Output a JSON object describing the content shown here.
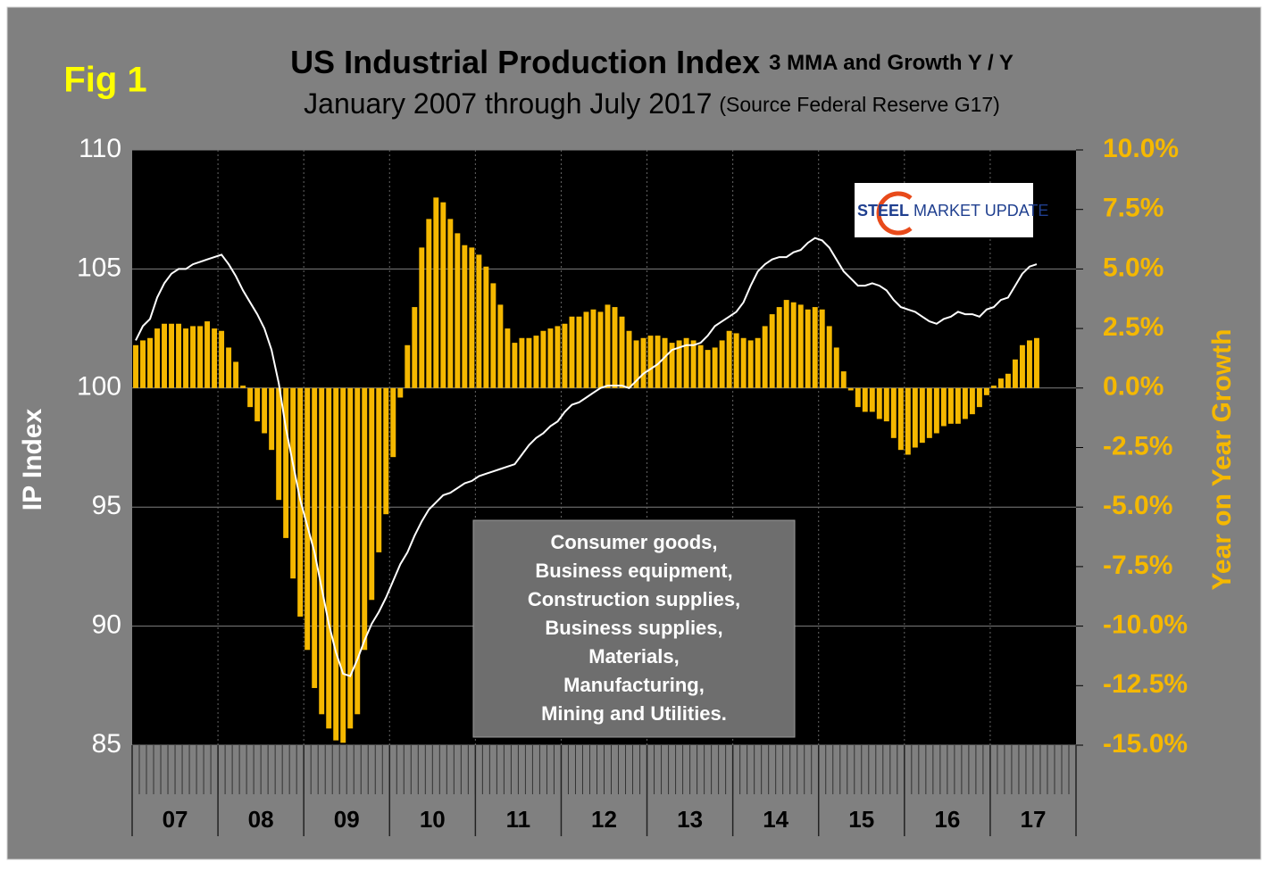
{
  "chart_data": {
    "type": "bar_line",
    "fig_label": "Fig 1",
    "title": "US Industrial Production Index",
    "title_suffix": "3 MMA and Growth Y / Y",
    "subtitle": "January 2007 through July 2017",
    "subtitle_suffix": "(Source Federal Reserve G17)",
    "ylabel": "IP Index",
    "y2label": "Year on Year Growth",
    "annotation": [
      "Consumer goods,",
      "Business equipment,",
      "Construction supplies,",
      "Business supplies,",
      "Materials,",
      "Manufacturing,",
      "Mining and Utilities."
    ],
    "logo": [
      "STEEL",
      "MARKET UPDATE"
    ],
    "year_labels": [
      "07",
      "08",
      "09",
      "10",
      "11",
      "12",
      "13",
      "14",
      "15",
      "16",
      "17"
    ],
    "xlim": [
      0,
      132
    ],
    "ylim": [
      85,
      110
    ],
    "yticks": [
      85,
      90,
      95,
      100,
      105,
      110
    ],
    "y2lim": [
      -15,
      10
    ],
    "y2ticks": [
      {
        "value": -15,
        "label": "-15.0%"
      },
      {
        "value": -12.5,
        "label": "-12.5%"
      },
      {
        "value": -10,
        "label": "-10.0%"
      },
      {
        "value": -7.5,
        "label": "-7.5%"
      },
      {
        "value": -5,
        "label": "-5.0%"
      },
      {
        "value": -2.5,
        "label": "-2.5%"
      },
      {
        "value": 0,
        "label": "0.0%"
      },
      {
        "value": 2.5,
        "label": "2.5%"
      },
      {
        "value": 5,
        "label": "5.0%"
      },
      {
        "value": 7.5,
        "label": "7.5%"
      },
      {
        "value": 10,
        "label": "10.0%"
      }
    ],
    "grid": true,
    "series": [
      {
        "type": "bar",
        "axis": "y2",
        "color": "#f5b800",
        "values": [
          1.8,
          2.0,
          2.1,
          2.5,
          2.7,
          2.7,
          2.7,
          2.5,
          2.6,
          2.6,
          2.8,
          2.5,
          2.4,
          1.7,
          1.1,
          0.1,
          -0.8,
          -1.4,
          -1.9,
          -2.6,
          -4.7,
          -6.3,
          -8.0,
          -9.6,
          -11.0,
          -12.6,
          -13.7,
          -14.3,
          -14.8,
          -14.9,
          -14.3,
          -13.7,
          -11.0,
          -8.9,
          -6.9,
          -5.3,
          -2.9,
          -0.4,
          1.8,
          3.4,
          5.9,
          7.1,
          8.0,
          7.8,
          7.1,
          6.5,
          6.0,
          5.9,
          5.6,
          5.1,
          4.4,
          3.5,
          2.5,
          1.9,
          2.1,
          2.1,
          2.2,
          2.4,
          2.5,
          2.6,
          2.7,
          3.0,
          3.0,
          3.2,
          3.3,
          3.2,
          3.5,
          3.4,
          3.0,
          2.4,
          2.0,
          2.1,
          2.2,
          2.2,
          2.1,
          1.9,
          2.0,
          2.1,
          2.0,
          1.8,
          1.6,
          1.7,
          2.0,
          2.4,
          2.3,
          2.1,
          2.0,
          2.1,
          2.6,
          3.1,
          3.4,
          3.7,
          3.6,
          3.5,
          3.3,
          3.4,
          3.3,
          2.6,
          1.7,
          0.7,
          -0.1,
          -0.8,
          -1.0,
          -1.0,
          -1.3,
          -1.4,
          -2.1,
          -2.6,
          -2.8,
          -2.5,
          -2.3,
          -2.1,
          -1.9,
          -1.6,
          -1.5,
          -1.5,
          -1.3,
          -1.1,
          -0.8,
          -0.3,
          0.1,
          0.4,
          0.6,
          1.2,
          1.8,
          2.0,
          2.1
        ]
      },
      {
        "type": "line",
        "color": "#ffffff",
        "values": [
          102.0,
          102.6,
          102.9,
          103.8,
          104.4,
          104.8,
          105.0,
          105.0,
          105.2,
          105.3,
          105.4,
          105.5,
          105.6,
          105.2,
          104.7,
          104.1,
          103.6,
          103.1,
          102.5,
          101.6,
          100.2,
          98.3,
          96.8,
          95.3,
          94.2,
          93.1,
          91.6,
          90.1,
          88.9,
          88.0,
          87.9,
          88.6,
          89.4,
          90.1,
          90.6,
          91.2,
          91.9,
          92.6,
          93.1,
          93.8,
          94.4,
          94.9,
          95.2,
          95.5,
          95.6,
          95.8,
          96.0,
          96.1,
          96.3,
          96.4,
          96.5,
          96.6,
          96.7,
          96.8,
          97.2,
          97.6,
          97.9,
          98.1,
          98.4,
          98.6,
          99.0,
          99.3,
          99.4,
          99.6,
          99.8,
          100.0,
          100.1,
          100.1,
          100.1,
          100.0,
          100.3,
          100.6,
          100.8,
          101.0,
          101.3,
          101.6,
          101.7,
          101.8,
          101.8,
          101.9,
          102.2,
          102.6,
          102.8,
          103.0,
          103.2,
          103.6,
          104.3,
          104.9,
          105.2,
          105.4,
          105.5,
          105.5,
          105.7,
          105.8,
          106.1,
          106.3,
          106.2,
          105.9,
          105.4,
          104.9,
          104.6,
          104.3,
          104.3,
          104.4,
          104.3,
          104.1,
          103.7,
          103.4,
          103.3,
          103.2,
          103.0,
          102.8,
          102.7,
          102.9,
          103.0,
          103.2,
          103.1,
          103.1,
          103.0,
          103.3,
          103.4,
          103.7,
          103.8,
          104.3,
          104.8,
          105.1,
          105.2
        ]
      }
    ]
  }
}
